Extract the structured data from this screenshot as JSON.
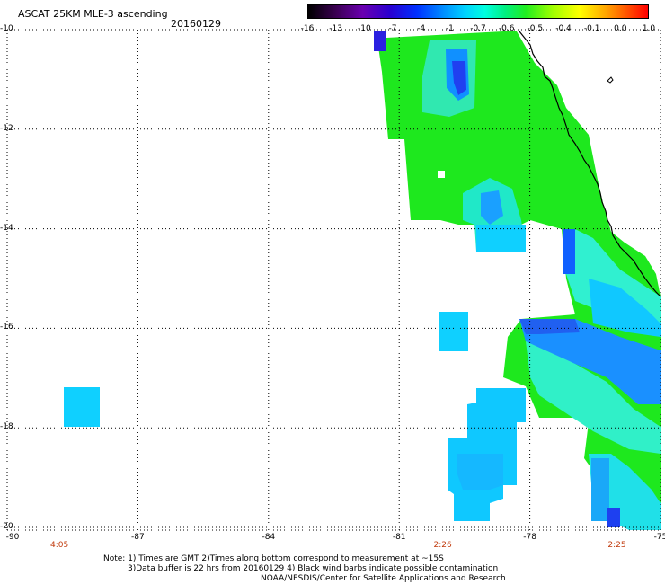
{
  "header": {
    "title": "ASCAT 25KM MLE-3 ascending",
    "date": "20160129"
  },
  "colorbar": {
    "labels": [
      "-16",
      "-13",
      "-10",
      "-7",
      "-4",
      "-1",
      "-0.7",
      "-0.6",
      "-0.5",
      "-0.4",
      "-0.1",
      "0.0",
      "1.0"
    ],
    "colors": [
      "#000000",
      "#3a0050",
      "#6a00b0",
      "#2a00d0",
      "#0030ff",
      "#0090ff",
      "#00d0ff",
      "#00ffe0",
      "#00f080",
      "#40ff00",
      "#a0ff00",
      "#ffff00",
      "#ffa000",
      "#ff5000",
      "#ff0000"
    ]
  },
  "map": {
    "lat_labels": [
      "-10",
      "-12",
      "-14",
      "-16",
      "-18",
      "-20"
    ],
    "lon_labels": [
      "-90",
      "-87",
      "-84",
      "-81",
      "-78",
      "-75"
    ],
    "time_labels": [
      {
        "text": "4:05",
        "lon": -88.8
      },
      {
        "text": "2:26",
        "lon": -80.0
      },
      {
        "text": "2:25",
        "lon": -76.0
      }
    ],
    "lat_range": [
      -20,
      -10
    ],
    "lon_range": [
      -90,
      -75
    ],
    "grid": true
  },
  "notes": {
    "line1": "Note: 1) Times are GMT 2)Times along bottom correspond to measurement at ~15S",
    "line2": "3)Data buffer is 22 hrs from 20160129 4) Black wind barbs indicate possible contamination",
    "line3": "NOAA/NESDIS/Center for Satellite Applications and Research"
  }
}
